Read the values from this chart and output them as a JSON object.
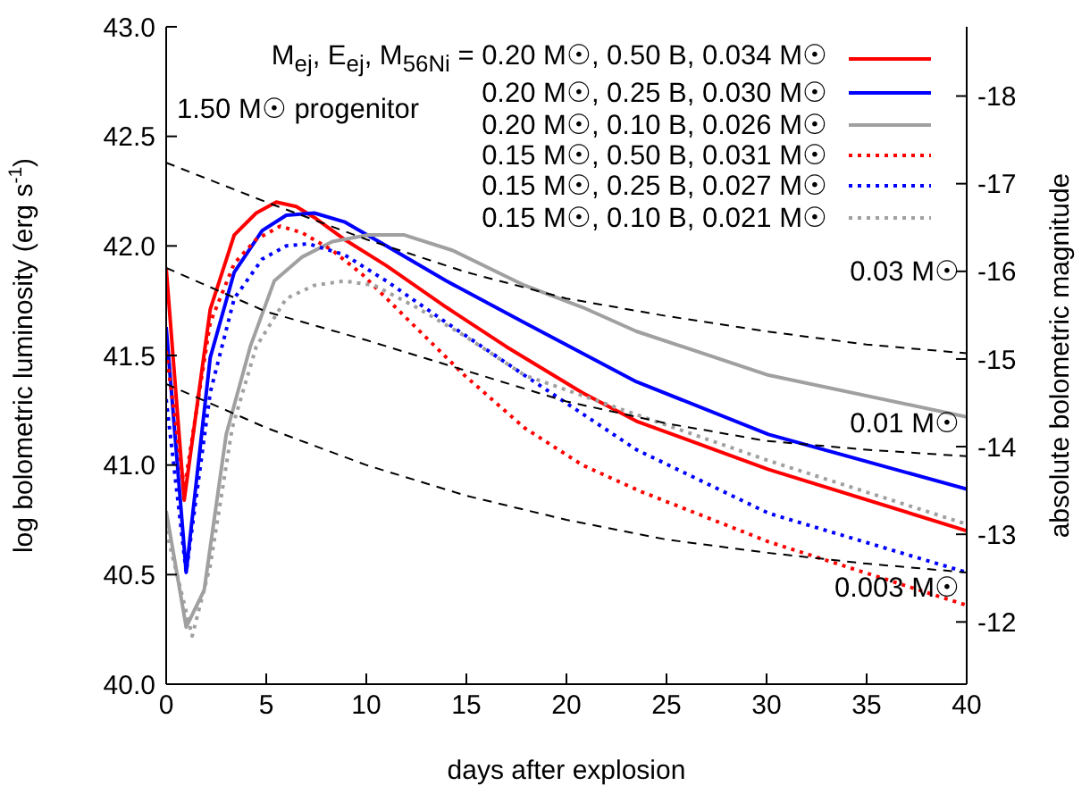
{
  "chart_data": {
    "type": "line",
    "xlabel": "days after explosion",
    "ylabel": "log bolometric luminosity (erg s$^{-1}$)",
    "y2label": "absolute bolometric magnitude",
    "legend_title": "M$_{ej}$, E$_{ej}$, M$_{56Ni}$ =",
    "legend": "top right",
    "grid": false,
    "marker": "none",
    "xlim": [
      0,
      40
    ],
    "xticks": [
      0,
      5,
      10,
      15,
      20,
      25,
      30,
      35,
      40
    ],
    "ylim": [
      40,
      43
    ],
    "yticks": [
      {
        "value": 40,
        "label": "40.0"
      },
      40.5,
      {
        "value": 41,
        "label": "41.0"
      },
      41.5,
      {
        "value": 42,
        "label": "42.0"
      },
      42.5,
      {
        "value": 43,
        "label": "43.0"
      }
    ],
    "y2lim": [
      -11.29,
      -18.79
    ],
    "y2ticks": [
      -12,
      -13,
      -14,
      -15,
      -16,
      -17,
      -18
    ],
    "annotations": [
      "1.50 M☉ progenitor",
      "0.03 M☉",
      "0.01 M☉",
      "0.003 M☉"
    ],
    "series": [
      {
        "name": "0.20 M☉, 0.50 B, 0.034 M☉",
        "color": "#ff0000",
        "line_style": "solid",
        "x": [
          0,
          0.9,
          2.2,
          3.4,
          4.5,
          5.5,
          6.5,
          7.4,
          8.9,
          11,
          14,
          17,
          20.8,
          23.5,
          30.1,
          40
        ],
        "values": [
          41.9,
          40.84,
          41.71,
          42.05,
          42.15,
          42.2,
          42.18,
          42.13,
          42.03,
          41.91,
          41.72,
          41.54,
          41.33,
          41.2,
          40.98,
          40.7
        ]
      },
      {
        "name": "0.20 M☉, 0.25 B, 0.030 M☉",
        "color": "#0000ff",
        "line_style": "solid",
        "x": [
          0,
          1,
          2.2,
          3.4,
          4.8,
          6,
          7.4,
          8.9,
          11,
          14,
          17.9,
          23.5,
          30.1,
          40
        ],
        "values": [
          41.63,
          40.51,
          41.49,
          41.88,
          42.07,
          42.14,
          42.15,
          42.11,
          42.0,
          41.84,
          41.65,
          41.38,
          41.14,
          40.89
        ]
      },
      {
        "name": "0.20 M☉, 0.10 B, 0.026 M☉",
        "color": "#a0a0a0",
        "line_style": "solid",
        "x": [
          0,
          1,
          1.9,
          3,
          4.2,
          5.4,
          6.8,
          8.3,
          10.1,
          11.9,
          14.3,
          17.9,
          20.8,
          23.5,
          30.1,
          40
        ],
        "values": [
          40.79,
          40.26,
          40.43,
          41.14,
          41.54,
          41.84,
          41.95,
          42.02,
          42.05,
          42.05,
          41.98,
          41.82,
          41.72,
          41.61,
          41.41,
          41.22
        ]
      },
      {
        "name": "0.15 M☉, 0.50 B, 0.031 M☉",
        "color": "#ff0000",
        "line_style": "dotted",
        "x": [
          0,
          0.9,
          2.2,
          3.4,
          4.5,
          5.7,
          6.8,
          8.3,
          9.8,
          11.9,
          14.9,
          17.9,
          20.8,
          23.7,
          30.1,
          40
        ],
        "values": [
          41.52,
          40.89,
          41.65,
          41.92,
          42.03,
          42.09,
          42.06,
          41.98,
          41.87,
          41.68,
          41.41,
          41.17,
          41.0,
          40.88,
          40.65,
          40.36
        ]
      },
      {
        "name": "0.15 M☉, 0.25 B, 0.027 M☉",
        "color": "#0000ff",
        "line_style": "dotted",
        "x": [
          0,
          1,
          2.2,
          3.4,
          4.8,
          6,
          7.1,
          8.9,
          11,
          14,
          17.9,
          23.5,
          30.1,
          40
        ],
        "values": [
          41.3,
          40.51,
          41.33,
          41.76,
          41.94,
          42.0,
          42.01,
          41.96,
          41.84,
          41.65,
          41.41,
          41.07,
          40.78,
          40.51
        ]
      },
      {
        "name": "0.15 M☉, 0.10 B, 0.021 M☉",
        "color": "#a0a0a0",
        "line_style": "dotted",
        "x": [
          0,
          1.3,
          2.2,
          3.3,
          4.5,
          6,
          7.4,
          8.9,
          10.4,
          12.5,
          14.9,
          17.9,
          23.5,
          30.1,
          40
        ],
        "values": [
          40.7,
          40.22,
          40.54,
          41.17,
          41.54,
          41.76,
          41.82,
          41.84,
          41.82,
          41.72,
          41.59,
          41.41,
          41.23,
          41.02,
          40.73
        ]
      },
      {
        "color": "#000000",
        "line_style": "dashed",
        "x": [
          0,
          5,
          10,
          15,
          20,
          25,
          30,
          35,
          40
        ],
        "values": [
          42.38,
          42.2,
          42.03,
          41.88,
          41.76,
          41.68,
          41.61,
          41.55,
          41.51
        ]
      },
      {
        "color": "#000000",
        "line_style": "dashed",
        "x": [
          0,
          5,
          10,
          15,
          20,
          25,
          30,
          35,
          40
        ],
        "values": [
          41.9,
          41.7,
          41.57,
          41.43,
          41.29,
          41.19,
          41.11,
          41.07,
          41.04
        ]
      },
      {
        "color": "#000000",
        "line_style": "dashed",
        "x": [
          0,
          5,
          10,
          15,
          20,
          25,
          30,
          35,
          40
        ],
        "values": [
          41.37,
          41.17,
          41.0,
          40.86,
          40.75,
          40.66,
          40.6,
          40.55,
          40.51
        ]
      }
    ]
  }
}
